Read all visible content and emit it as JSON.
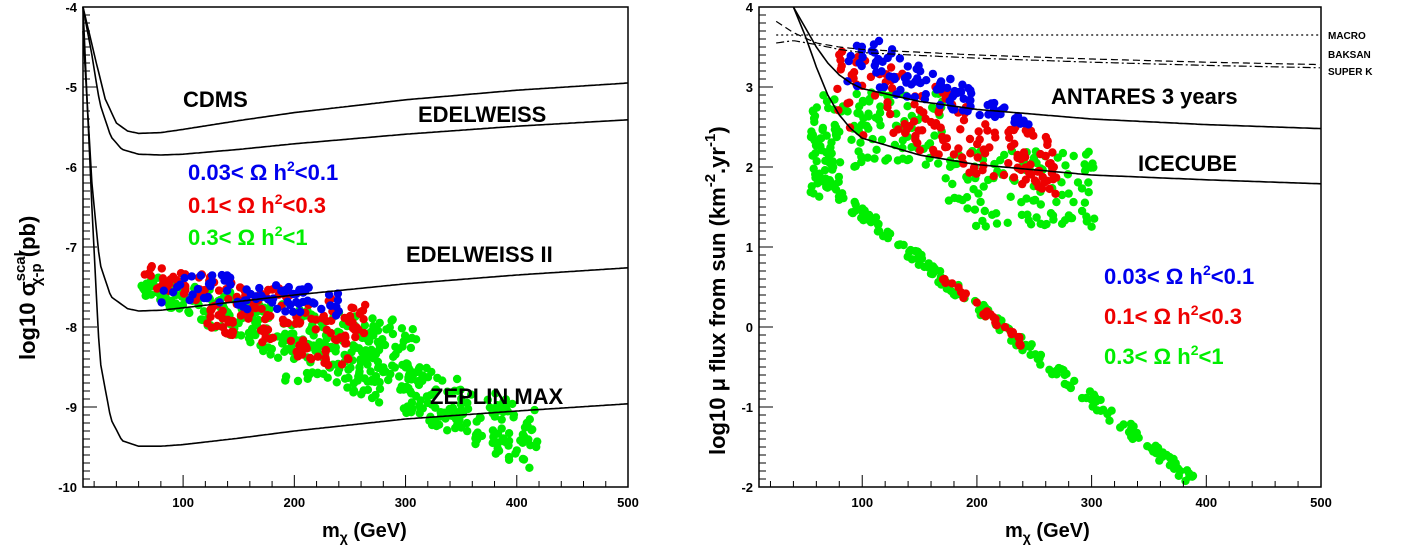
{
  "chart_data": [
    {
      "type": "scatter",
      "panel": "left",
      "title": "",
      "xlabel": {
        "main": "m",
        "sub": "χ",
        "rest": " (GeV)"
      },
      "ylabel": {
        "pre": "log10 σ",
        "sup": "scal",
        "sub": "χ-p",
        "rest": " (pb)"
      },
      "xlim": [
        10,
        500
      ],
      "ylim": [
        -10,
        -4
      ],
      "x_ticks": [
        "100",
        "200",
        "300",
        "400",
        "500"
      ],
      "x_tick_values": [
        100,
        200,
        300,
        400,
        500
      ],
      "y_ticks": [
        "-4",
        "-5",
        "-6",
        "-7",
        "-8",
        "-9",
        "-10"
      ],
      "y_tick_values": [
        -4,
        -5,
        -6,
        -7,
        -8,
        -9,
        -10
      ],
      "curves": [
        {
          "name": "CDMS",
          "x": [
            10,
            22,
            30,
            40,
            50,
            60,
            80,
            100,
            150,
            200,
            300,
            400,
            500
          ],
          "y": [
            -4,
            -4.7,
            -5.15,
            -5.45,
            -5.55,
            -5.58,
            -5.57,
            -5.53,
            -5.42,
            -5.32,
            -5.16,
            -5.04,
            -4.95
          ]
        },
        {
          "name": "EDELWEISS",
          "x": [
            10,
            18,
            25,
            35,
            45,
            60,
            80,
            100,
            150,
            200,
            300,
            400,
            500
          ],
          "y": [
            -4,
            -4.6,
            -5.2,
            -5.62,
            -5.78,
            -5.84,
            -5.85,
            -5.84,
            -5.78,
            -5.71,
            -5.59,
            -5.49,
            -5.41
          ]
        },
        {
          "name": "EDELWEISS II",
          "x": [
            10,
            18,
            25,
            35,
            50,
            60,
            80,
            100,
            150,
            200,
            300,
            400,
            500
          ],
          "y": [
            -4.3,
            -6.2,
            -7.2,
            -7.62,
            -7.77,
            -7.8,
            -7.79,
            -7.76,
            -7.68,
            -7.6,
            -7.46,
            -7.35,
            -7.26
          ]
        },
        {
          "name": "ZEPLIN MAX",
          "x": [
            10,
            18,
            25,
            35,
            45,
            60,
            80,
            100,
            150,
            200,
            300,
            400,
            500
          ],
          "y": [
            -4.0,
            -6.5,
            -8.4,
            -9.15,
            -9.42,
            -9.49,
            -9.49,
            -9.47,
            -9.39,
            -9.3,
            -9.15,
            -9.05,
            -8.96
          ]
        }
      ],
      "curve_labels": [
        "CDMS",
        "EDELWEISS",
        "EDELWEISS II",
        "ZEPLIN MAX"
      ],
      "series": [
        {
          "name": "0.3< Ω h^2<1",
          "color": "#00ee00"
        },
        {
          "name": "0.1< Ω h^2<0.3",
          "color": "#ee0000"
        },
        {
          "name": "0.03< Ω h^2<0.1",
          "color": "#0000ee"
        }
      ],
      "legend": [
        {
          "pre": "0.03< Ω h",
          "sup": "2",
          "post": "<0.1",
          "color": "#0000ee"
        },
        {
          "pre": "0.1< Ω h",
          "sup": "2",
          "post": "<0.3",
          "color": "#ee0000"
        },
        {
          "pre": "0.3< Ω h",
          "sup": "2",
          "post": "<1",
          "color": "#00ee00"
        }
      ],
      "legend_position": "center-left"
    },
    {
      "type": "scatter",
      "panel": "right",
      "title": "",
      "xlabel": {
        "main": "m",
        "sub": "χ",
        "rest": " (GeV)"
      },
      "ylabel": {
        "pre": "log10 μ flux from sun (km",
        "sup1": "-2",
        "mid": ".yr",
        "sup2": "-1",
        "rest": ")"
      },
      "xlim": [
        10,
        500
      ],
      "ylim": [
        -2,
        4
      ],
      "x_ticks": [
        "100",
        "200",
        "300",
        "400",
        "500"
      ],
      "x_tick_values": [
        100,
        200,
        300,
        400,
        500
      ],
      "y_ticks": [
        "4",
        "3",
        "2",
        "1",
        "0",
        "-1",
        "-2"
      ],
      "y_tick_values": [
        4,
        3,
        2,
        1,
        0,
        -1,
        -2
      ],
      "curves": [
        {
          "name": "ANTARES 3 years",
          "x": [
            40,
            50,
            60,
            70,
            80,
            90,
            100,
            150,
            200,
            300,
            400,
            500
          ],
          "y": [
            4.0,
            3.75,
            3.5,
            3.3,
            3.15,
            3.05,
            2.98,
            2.82,
            2.72,
            2.6,
            2.53,
            2.48
          ]
        },
        {
          "name": "ICECUBE",
          "x": [
            40,
            50,
            60,
            70,
            80,
            90,
            100,
            150,
            200,
            300,
            400,
            500
          ],
          "y": [
            4.0,
            3.65,
            3.25,
            2.9,
            2.65,
            2.48,
            2.36,
            2.15,
            2.03,
            1.9,
            1.84,
            1.79
          ]
        }
      ],
      "limit_lines": [
        {
          "name": "MACRO",
          "style": "dotted",
          "x": [
            25,
            500
          ],
          "y": [
            3.65,
            3.65
          ]
        },
        {
          "name": "BAKSAN",
          "style": "dashed",
          "x": [
            25,
            40,
            60,
            80,
            100,
            200,
            300,
            400,
            500
          ],
          "y": [
            3.82,
            3.68,
            3.55,
            3.5,
            3.47,
            3.4,
            3.35,
            3.31,
            3.28
          ]
        },
        {
          "name": "SUPER K",
          "style": "dashdot",
          "x": [
            25,
            40,
            60,
            80,
            100,
            200,
            300,
            400,
            500
          ],
          "y": [
            3.55,
            3.58,
            3.53,
            3.47,
            3.43,
            3.36,
            3.31,
            3.27,
            3.24
          ]
        }
      ],
      "curve_labels": [
        "ANTARES 3 years",
        "ICECUBE"
      ],
      "exp_labels": [
        "MACRO",
        "BAKSAN",
        "SUPER K"
      ],
      "series": [
        {
          "name": "0.3< Ω h^2<1",
          "color": "#00ee00"
        },
        {
          "name": "0.1< Ω h^2<0.3",
          "color": "#ee0000"
        },
        {
          "name": "0.03< Ω h^2<0.1",
          "color": "#0000ee"
        }
      ],
      "legend": [
        {
          "pre": "0.03< Ω h",
          "sup": "2",
          "post": "<0.1",
          "color": "#0000ee"
        },
        {
          "pre": "0.1< Ω h",
          "sup": "2",
          "post": "<0.3",
          "color": "#ee0000"
        },
        {
          "pre": "0.3< Ω h",
          "sup": "2",
          "post": "<1",
          "color": "#00ee00"
        }
      ],
      "legend_position": "lower-right"
    }
  ]
}
